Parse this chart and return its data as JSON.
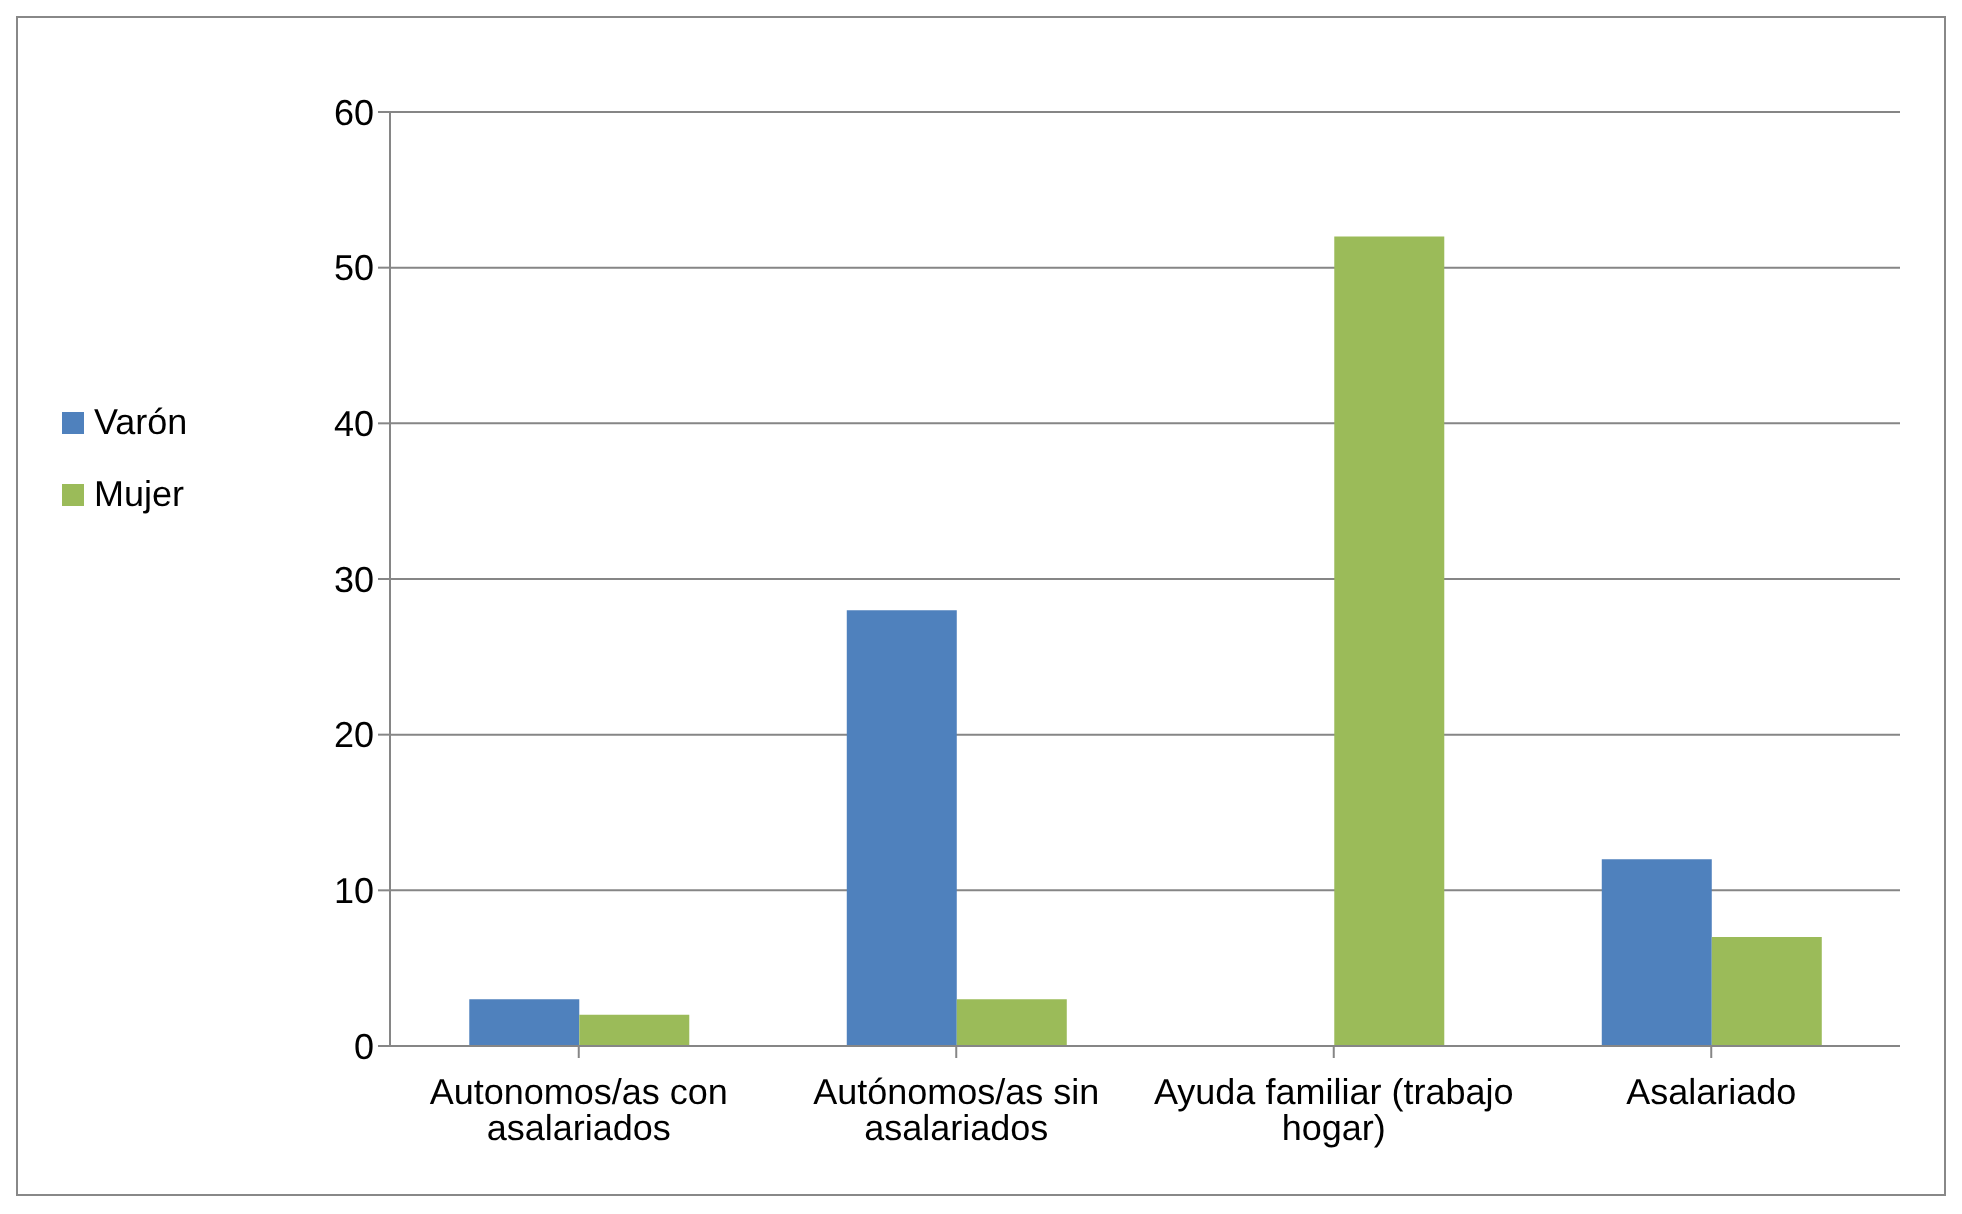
{
  "chart_data": {
    "type": "bar",
    "categories": [
      "Autonomos/as con asalariados",
      "Autónomos/as sin asalariados",
      "Ayuda familiar (trabajo hogar)",
      "Asalariado"
    ],
    "series": [
      {
        "name": "Varón",
        "color": "#4f81bd",
        "values": [
          3,
          28,
          0,
          12
        ]
      },
      {
        "name": "Mujer",
        "color": "#9bbb59",
        "values": [
          2,
          3,
          52,
          7
        ]
      }
    ],
    "ylim": [
      0,
      60
    ],
    "yticks": [
      0,
      10,
      20,
      30,
      40,
      50,
      60
    ],
    "grid": "y",
    "legend": "left"
  }
}
